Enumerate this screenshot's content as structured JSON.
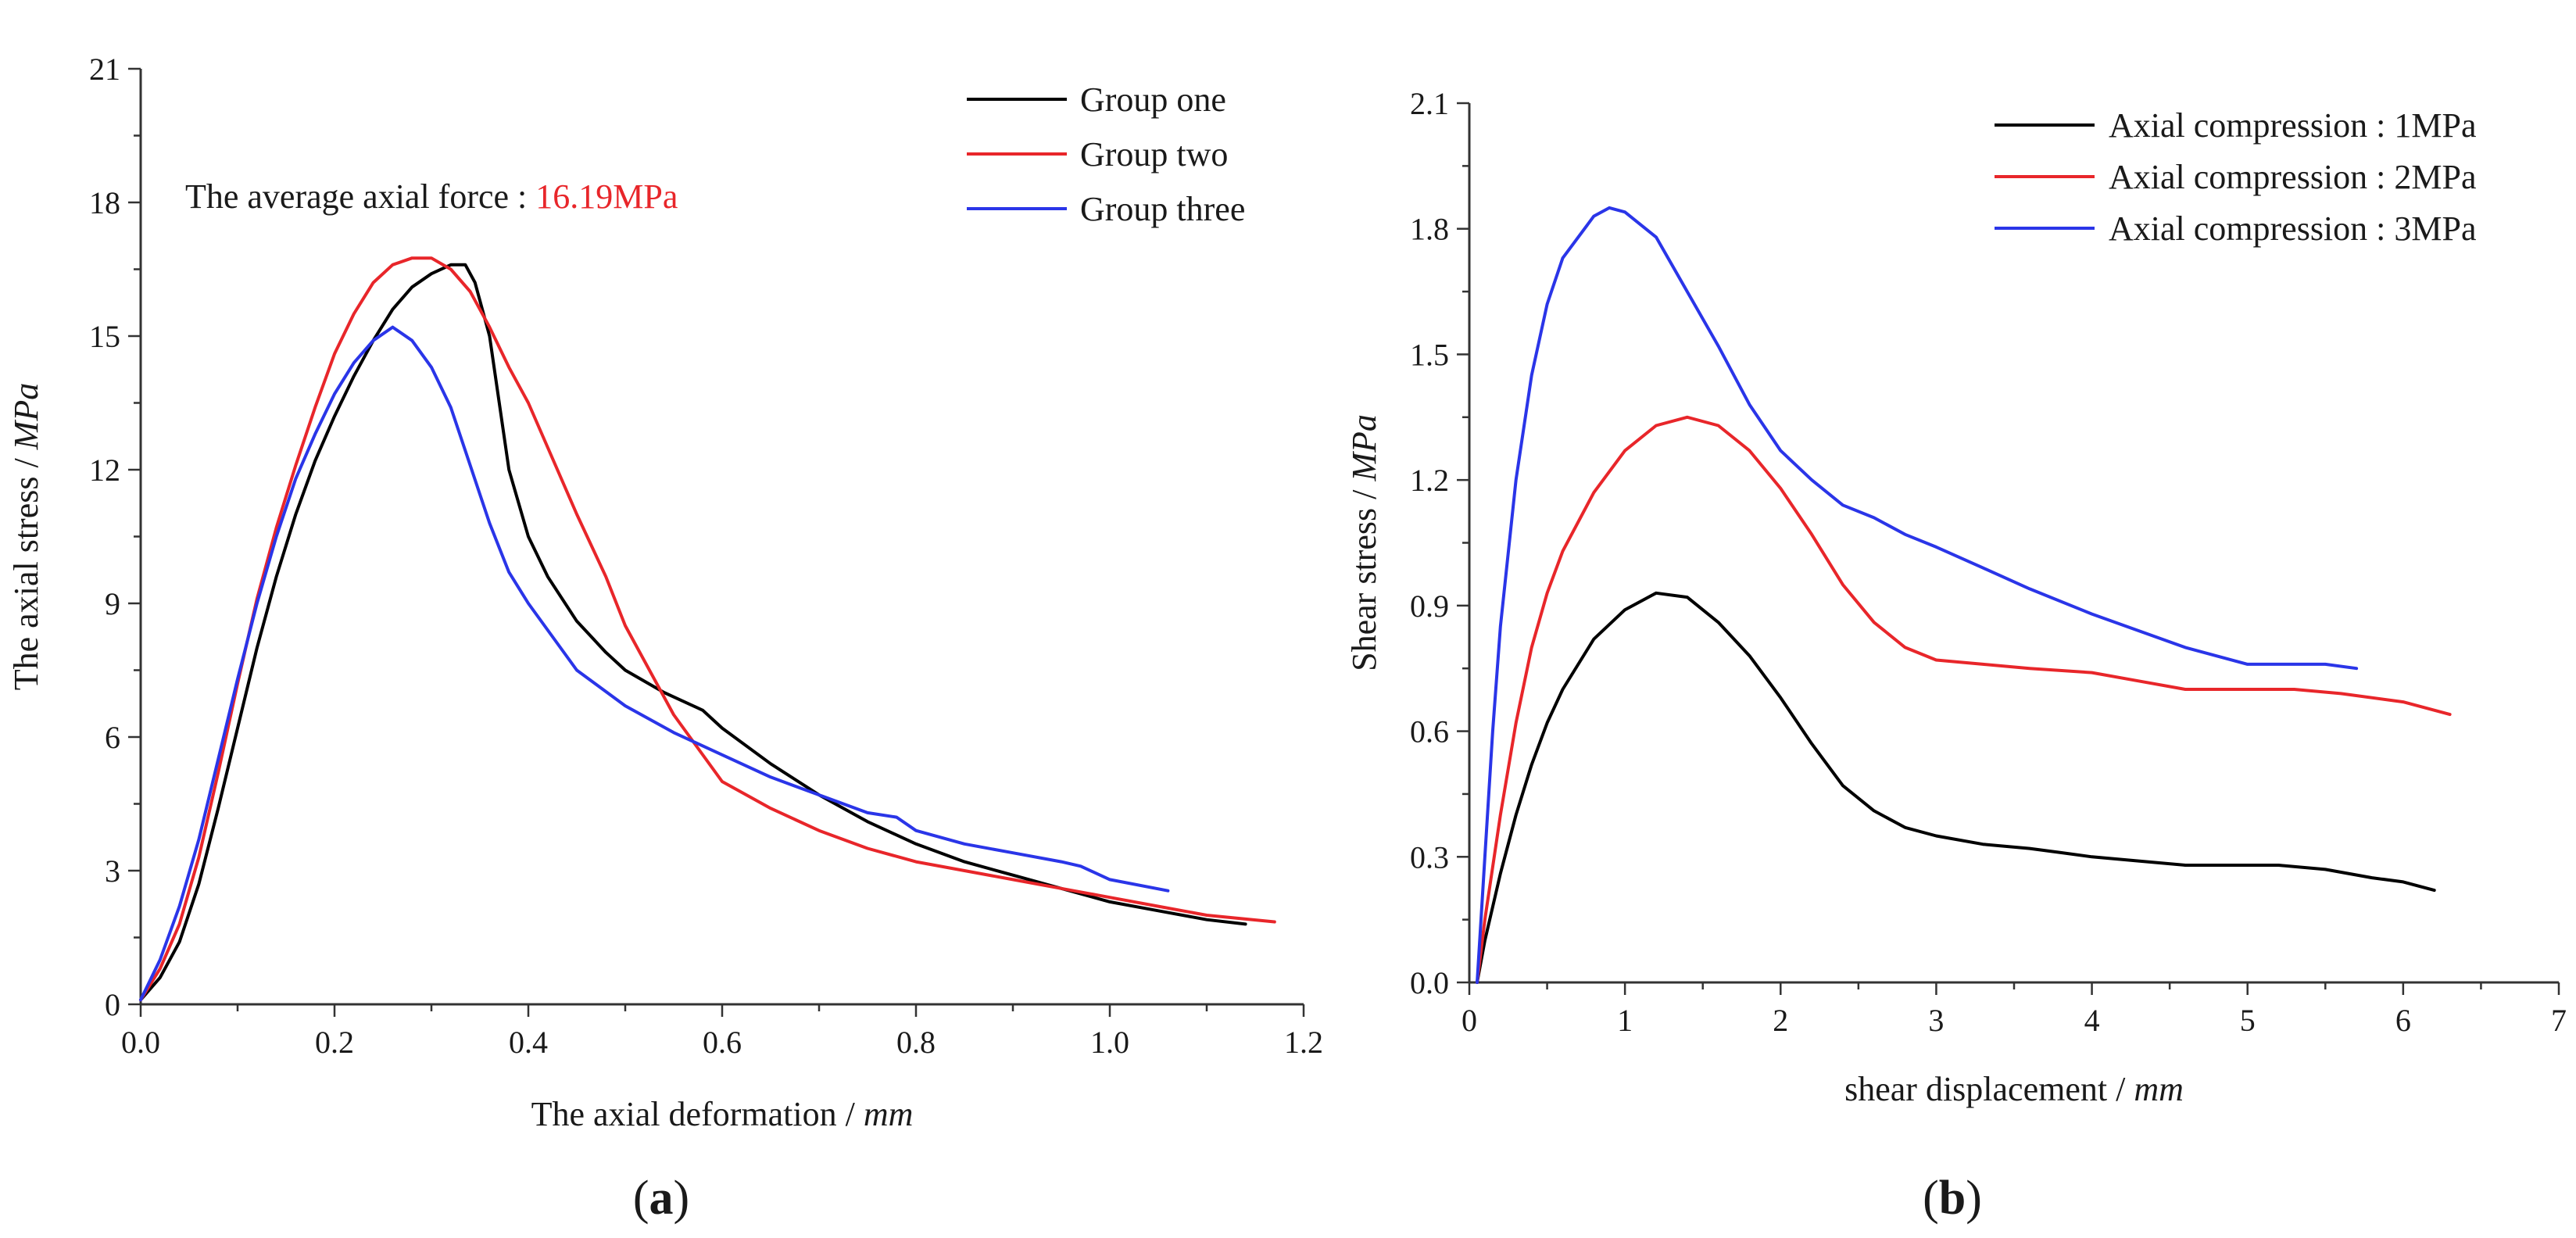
{
  "chart_data": [
    {
      "type": "line",
      "panel_label": "a",
      "xlabel": "The axial deformation / ",
      "xlabel_unit": "mm",
      "ylabel": "The axial stress / ",
      "ylabel_unit": "MPa",
      "xlim": [
        0,
        1.2
      ],
      "ylim": [
        0,
        21
      ],
      "xticks": [
        "0.0",
        "0.2",
        "0.4",
        "0.6",
        "0.8",
        "1.0",
        "1.2"
      ],
      "yticks": [
        "0",
        "3",
        "6",
        "9",
        "12",
        "15",
        "18",
        "21"
      ],
      "grid": false,
      "legend_position": "top-right",
      "annotation": {
        "text": "The average axial force : ",
        "value": "16.19MPa",
        "value_color": "#e8262a"
      },
      "series": [
        {
          "name": "Group one",
          "color": "#000000",
          "x": [
            0,
            0.02,
            0.04,
            0.06,
            0.08,
            0.1,
            0.12,
            0.14,
            0.16,
            0.18,
            0.2,
            0.22,
            0.24,
            0.26,
            0.28,
            0.3,
            0.32,
            0.335,
            0.345,
            0.36,
            0.37,
            0.38,
            0.4,
            0.42,
            0.45,
            0.48,
            0.5,
            0.54,
            0.58,
            0.6,
            0.65,
            0.7,
            0.75,
            0.8,
            0.85,
            0.9,
            0.95,
            1.0,
            1.05,
            1.1,
            1.14
          ],
          "y": [
            0.1,
            0.6,
            1.4,
            2.7,
            4.4,
            6.2,
            8.0,
            9.6,
            11.0,
            12.2,
            13.2,
            14.1,
            14.9,
            15.6,
            16.1,
            16.4,
            16.6,
            16.6,
            16.2,
            15.0,
            13.5,
            12.0,
            10.5,
            9.6,
            8.6,
            7.9,
            7.5,
            7.0,
            6.6,
            6.2,
            5.4,
            4.7,
            4.1,
            3.6,
            3.2,
            2.9,
            2.6,
            2.3,
            2.1,
            1.9,
            1.8
          ]
        },
        {
          "name": "Group two",
          "color": "#e8262a",
          "x": [
            0,
            0.02,
            0.04,
            0.06,
            0.08,
            0.1,
            0.12,
            0.14,
            0.16,
            0.18,
            0.2,
            0.22,
            0.24,
            0.26,
            0.28,
            0.3,
            0.32,
            0.34,
            0.36,
            0.38,
            0.4,
            0.42,
            0.45,
            0.48,
            0.5,
            0.55,
            0.6,
            0.65,
            0.7,
            0.75,
            0.8,
            0.85,
            0.9,
            0.95,
            1.0,
            1.05,
            1.1,
            1.17
          ],
          "y": [
            0.1,
            0.8,
            1.8,
            3.3,
            5.2,
            7.2,
            9.1,
            10.7,
            12.1,
            13.4,
            14.6,
            15.5,
            16.2,
            16.6,
            16.75,
            16.75,
            16.5,
            16.0,
            15.2,
            14.3,
            13.5,
            12.5,
            11.0,
            9.6,
            8.5,
            6.5,
            5.0,
            4.4,
            3.9,
            3.5,
            3.2,
            3.0,
            2.8,
            2.6,
            2.4,
            2.2,
            2.0,
            1.85
          ]
        },
        {
          "name": "Group three",
          "color": "#2a35e8",
          "x": [
            0,
            0.02,
            0.04,
            0.06,
            0.08,
            0.1,
            0.12,
            0.14,
            0.16,
            0.18,
            0.2,
            0.22,
            0.24,
            0.26,
            0.28,
            0.3,
            0.32,
            0.34,
            0.36,
            0.38,
            0.4,
            0.45,
            0.5,
            0.55,
            0.6,
            0.65,
            0.7,
            0.75,
            0.78,
            0.8,
            0.85,
            0.9,
            0.95,
            0.97,
            1.0,
            1.06
          ],
          "y": [
            0.1,
            1.0,
            2.2,
            3.7,
            5.5,
            7.3,
            9.0,
            10.5,
            11.8,
            12.8,
            13.7,
            14.4,
            14.9,
            15.2,
            14.9,
            14.3,
            13.4,
            12.1,
            10.8,
            9.7,
            9.0,
            7.5,
            6.7,
            6.1,
            5.6,
            5.1,
            4.7,
            4.3,
            4.2,
            3.9,
            3.6,
            3.4,
            3.2,
            3.1,
            2.8,
            2.55
          ]
        }
      ]
    },
    {
      "type": "line",
      "panel_label": "b",
      "xlabel": "shear displacement / ",
      "xlabel_unit": "mm",
      "ylabel": "Shear stress / ",
      "ylabel_unit": "MPa",
      "xlim": [
        0,
        7
      ],
      "ylim": [
        0,
        2.1
      ],
      "xticks": [
        "0",
        "1",
        "2",
        "3",
        "4",
        "5",
        "6",
        "7"
      ],
      "yticks": [
        "0.0",
        "0.3",
        "0.6",
        "0.9",
        "1.2",
        "1.5",
        "1.8",
        "2.1"
      ],
      "grid": false,
      "legend_position": "top-right",
      "series": [
        {
          "name": "Axial compression : 1MPa",
          "color": "#000000",
          "x": [
            0.05,
            0.1,
            0.2,
            0.3,
            0.4,
            0.5,
            0.6,
            0.8,
            1.0,
            1.2,
            1.4,
            1.6,
            1.8,
            2.0,
            2.2,
            2.4,
            2.6,
            2.8,
            3.0,
            3.3,
            3.6,
            3.8,
            4.0,
            4.3,
            4.6,
            5.0,
            5.2,
            5.5,
            5.8,
            6.0,
            6.2
          ],
          "y": [
            0.0,
            0.1,
            0.26,
            0.4,
            0.52,
            0.62,
            0.7,
            0.82,
            0.89,
            0.93,
            0.92,
            0.86,
            0.78,
            0.68,
            0.57,
            0.47,
            0.41,
            0.37,
            0.35,
            0.33,
            0.32,
            0.31,
            0.3,
            0.29,
            0.28,
            0.28,
            0.28,
            0.27,
            0.25,
            0.24,
            0.22
          ]
        },
        {
          "name": "Axial compression : 2MPa",
          "color": "#e8262a",
          "x": [
            0.05,
            0.1,
            0.2,
            0.3,
            0.4,
            0.5,
            0.6,
            0.8,
            1.0,
            1.2,
            1.4,
            1.6,
            1.8,
            2.0,
            2.2,
            2.4,
            2.6,
            2.8,
            3.0,
            3.3,
            3.6,
            4.0,
            4.3,
            4.6,
            5.0,
            5.3,
            5.6,
            6.0,
            6.3
          ],
          "y": [
            0.0,
            0.15,
            0.4,
            0.62,
            0.8,
            0.93,
            1.03,
            1.17,
            1.27,
            1.33,
            1.35,
            1.33,
            1.27,
            1.18,
            1.07,
            0.95,
            0.86,
            0.8,
            0.77,
            0.76,
            0.75,
            0.74,
            0.72,
            0.7,
            0.7,
            0.7,
            0.69,
            0.67,
            0.64
          ]
        },
        {
          "name": "Axial compression : 3MPa",
          "color": "#2a35e8",
          "x": [
            0.05,
            0.1,
            0.15,
            0.2,
            0.3,
            0.4,
            0.5,
            0.6,
            0.8,
            0.9,
            1.0,
            1.2,
            1.4,
            1.6,
            1.8,
            2.0,
            2.2,
            2.4,
            2.6,
            2.8,
            3.0,
            3.3,
            3.6,
            4.0,
            4.3,
            4.6,
            5.0,
            5.3,
            5.5,
            5.7
          ],
          "y": [
            0.0,
            0.3,
            0.6,
            0.85,
            1.2,
            1.45,
            1.62,
            1.73,
            1.83,
            1.85,
            1.84,
            1.78,
            1.65,
            1.52,
            1.38,
            1.27,
            1.2,
            1.14,
            1.11,
            1.07,
            1.04,
            0.99,
            0.94,
            0.88,
            0.84,
            0.8,
            0.76,
            0.76,
            0.76,
            0.75
          ]
        }
      ]
    }
  ]
}
